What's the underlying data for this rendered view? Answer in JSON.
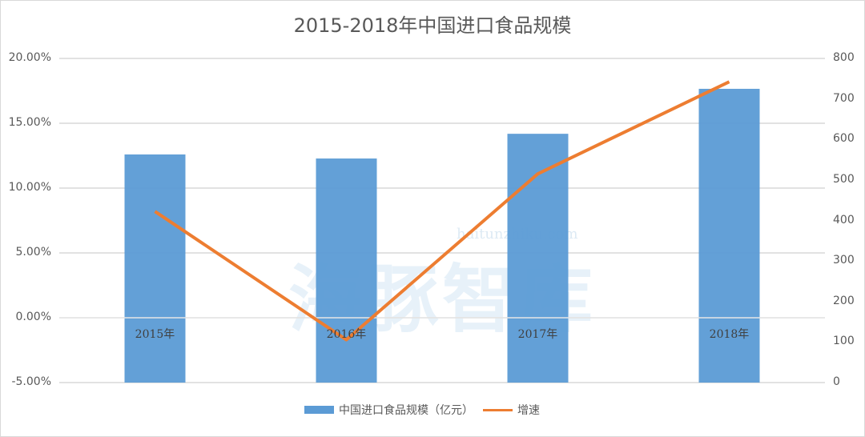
{
  "chart_data": {
    "type": "bar+line",
    "title": "2015-2018年中国进口食品规模",
    "categories": [
      "2015年",
      "2016年",
      "2017年",
      "2018年"
    ],
    "series": [
      {
        "name": "中国进口食品规模（亿元）",
        "type": "bar",
        "axis": "right",
        "color": "#5b9bd5",
        "values": [
          563,
          553,
          614,
          725
        ]
      },
      {
        "name": "增速",
        "type": "line",
        "axis": "left",
        "color": "#ed7d31",
        "values": [
          8.2,
          -1.7,
          11.1,
          18.2
        ],
        "unit": "%"
      }
    ],
    "left_axis": {
      "ticks": [
        "20.00%",
        "15.00%",
        "10.00%",
        "5.00%",
        "0.00%",
        "-5.00%"
      ],
      "range": [
        -5,
        20
      ]
    },
    "right_axis": {
      "ticks": [
        "800",
        "700",
        "600",
        "500",
        "400",
        "300",
        "200",
        "100",
        "0"
      ],
      "range": [
        0,
        800
      ]
    },
    "grid": true,
    "legend_position": "bottom"
  },
  "watermark": {
    "cn": "海豚智库",
    "url": "haitunzhiku.com"
  }
}
